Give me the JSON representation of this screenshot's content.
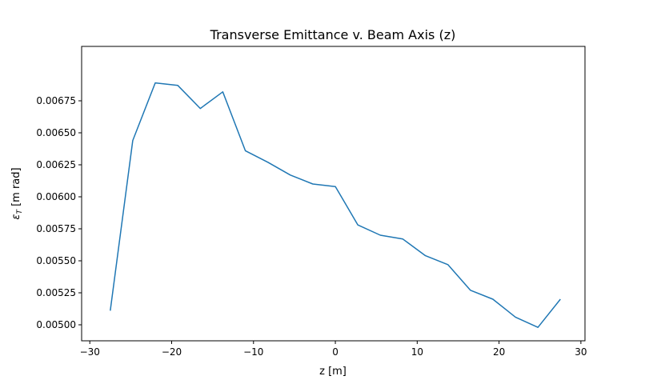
{
  "chart_data": {
    "type": "line",
    "title": "Transverse Emittance v. Beam Axis (z)",
    "xlabel": "z [m]",
    "ylabel_symbol": "ε",
    "ylabel_subscript": "T",
    "ylabel_unit": " [m rad]",
    "xlim": [
      -31.0,
      30.5
    ],
    "ylim": [
      0.004875,
      0.007175
    ],
    "xticks": [
      -30,
      -20,
      -10,
      0,
      10,
      20,
      30
    ],
    "xtick_labels": [
      "−30",
      "−20",
      "−10",
      "0",
      "10",
      "20",
      "30"
    ],
    "yticks": [
      0.005,
      0.00525,
      0.0055,
      0.00575,
      0.006,
      0.00625,
      0.0065,
      0.00675
    ],
    "ytick_labels": [
      "0.00500",
      "0.00525",
      "0.00550",
      "0.00575",
      "0.00600",
      "0.00625",
      "0.00650",
      "0.00675"
    ],
    "grid": false,
    "series": [
      {
        "color": "#1f77b4",
        "x": [
          -27.5,
          -24.75,
          -22.0,
          -19.25,
          -16.5,
          -13.75,
          -11.0,
          -8.25,
          -5.5,
          -2.75,
          0.0,
          2.75,
          5.5,
          8.25,
          11.0,
          13.75,
          16.5,
          19.25,
          22.0,
          24.75,
          27.5
        ],
        "y": [
          0.00511,
          0.00644,
          0.00689,
          0.00687,
          0.00669,
          0.00682,
          0.00636,
          0.00627,
          0.00617,
          0.0061,
          0.00608,
          0.00578,
          0.0057,
          0.00567,
          0.00554,
          0.00547,
          0.00527,
          0.0052,
          0.00506,
          0.00498,
          0.0052
        ]
      }
    ]
  }
}
